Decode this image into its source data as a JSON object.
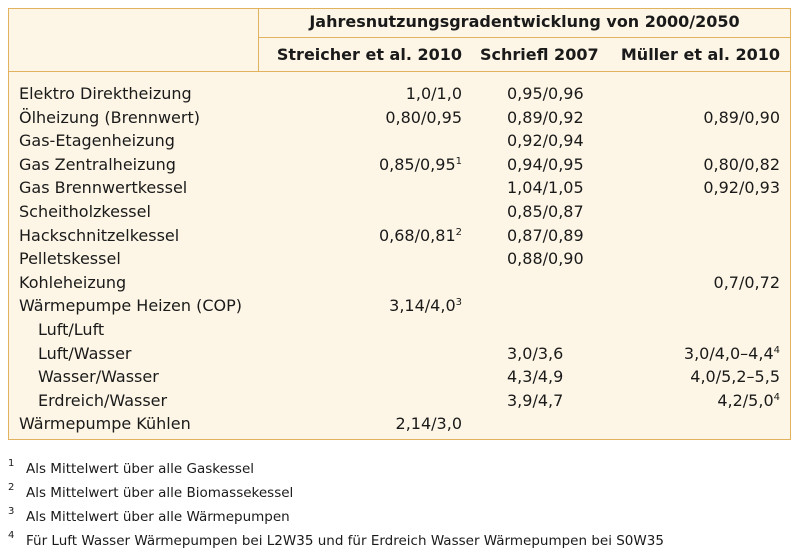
{
  "table": {
    "title": "Jahresnutzungsgradentwicklung von 2000/2050",
    "columns": [
      "Streicher et al. 2010",
      "Schriefl 2007",
      "Müller et al. 2010"
    ],
    "rows": [
      {
        "label": "Elektro Direktheizung",
        "cells": [
          "1,0/1,0",
          "0,95/0,96",
          null
        ]
      },
      {
        "label": "Ölheizung (Brennwert)",
        "cells": [
          "0,80/0,95",
          "0,89/0,92",
          "0,89/0,90"
        ]
      },
      {
        "label": "Gas-Etagenheizung",
        "cells": [
          null,
          "0,92/0,94",
          null
        ]
      },
      {
        "label": "Gas Zentralheizung",
        "cells": [
          {
            "text": "0,85/0,95",
            "sup": "1"
          },
          "0,94/0,95",
          "0,80/0,82"
        ]
      },
      {
        "label": "Gas Brennwertkessel",
        "cells": [
          null,
          "1,04/1,05",
          "0,92/0,93"
        ]
      },
      {
        "label": "Scheitholzkessel",
        "cells": [
          null,
          "0,85/0,87",
          null
        ]
      },
      {
        "label": "Hackschnitzelkessel",
        "cells": [
          {
            "text": "0,68/0,81",
            "sup": "2"
          },
          "0,87/0,89",
          null
        ]
      },
      {
        "label": "Pelletskessel",
        "cells": [
          null,
          "0,88/0,90",
          null
        ]
      },
      {
        "label": "Kohleheizung",
        "cells": [
          null,
          null,
          "0,7/0,72"
        ]
      },
      {
        "label": "Wärmepumpe Heizen (COP)",
        "cells": [
          {
            "text": "3,14/4,0",
            "sup": "3"
          },
          null,
          null
        ]
      },
      {
        "label": "Luft/Luft",
        "indent": true,
        "cells": [
          null,
          null,
          null
        ]
      },
      {
        "label": "Luft/Wasser",
        "indent": true,
        "cells": [
          null,
          "3,0/3,6",
          {
            "text": "3,0/4,0–4,4",
            "sup": "4"
          }
        ]
      },
      {
        "label": "Wasser/Wasser",
        "indent": true,
        "cells": [
          null,
          "4,3/4,9",
          "4,0/5,2–5,5"
        ]
      },
      {
        "label": "Erdreich/Wasser",
        "indent": true,
        "cells": [
          null,
          "3,9/4,7",
          {
            "text": "4,2/5,0",
            "sup": "4"
          }
        ]
      },
      {
        "label": "Wärmepumpe Kühlen",
        "cells": [
          "2,14/3,0",
          null,
          null
        ]
      }
    ]
  },
  "footnotes": [
    {
      "marker": "1",
      "text": "Als Mittelwert über alle Gaskessel"
    },
    {
      "marker": "2",
      "text": "Als Mittelwert über alle Biomassekessel"
    },
    {
      "marker": "3",
      "text": "Als Mittelwert über alle Wärmepumpen"
    },
    {
      "marker": "4",
      "text": "Für Luft Wasser Wärmepumpen bei L2W35 und für Erdreich Wasser Wärmepumpen bei S0W35"
    }
  ]
}
